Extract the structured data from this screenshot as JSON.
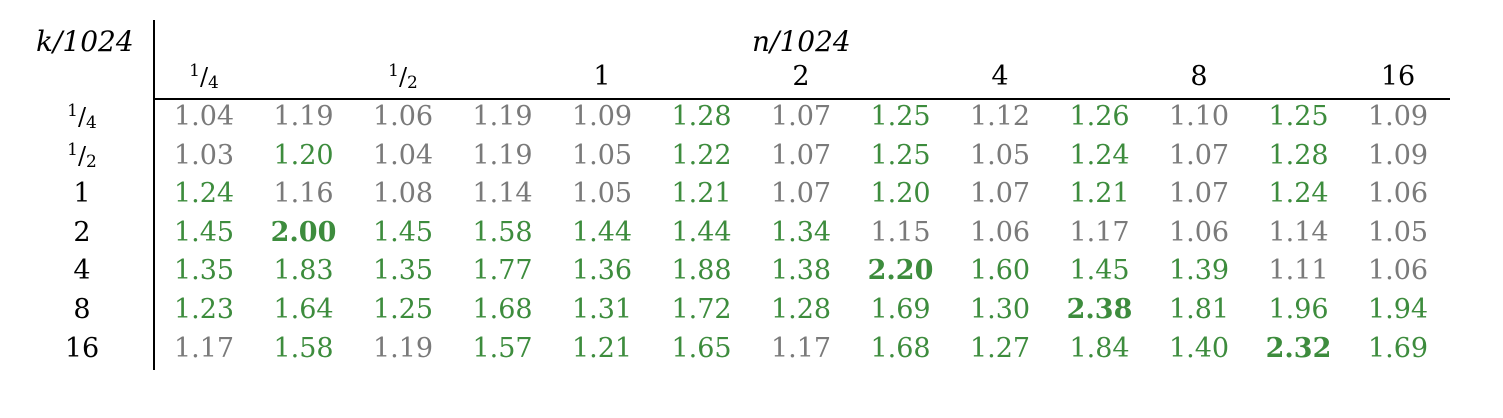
{
  "table": {
    "row_axis_label": "k/1024",
    "col_axis_label": "n/1024",
    "col_headers": [
      {
        "num": "1",
        "den": "4"
      },
      {
        "num": "1",
        "den": "2"
      },
      {
        "text": "1"
      },
      {
        "text": "2"
      },
      {
        "text": "4"
      },
      {
        "text": "8"
      },
      {
        "text": "16"
      }
    ],
    "row_headers": [
      {
        "num": "1",
        "den": "4"
      },
      {
        "num": "1",
        "den": "2"
      },
      {
        "text": "1"
      },
      {
        "text": "2"
      },
      {
        "text": "4"
      },
      {
        "text": "8"
      },
      {
        "text": "16"
      }
    ],
    "rows": [
      [
        [
          "1.04",
          "grey"
        ],
        [
          "1.19",
          "grey"
        ],
        [
          "1.06",
          "grey"
        ],
        [
          "1.19",
          "grey"
        ],
        [
          "1.09",
          "grey"
        ],
        [
          "1.28",
          "green"
        ],
        [
          "1.07",
          "grey"
        ],
        [
          "1.25",
          "green"
        ],
        [
          "1.12",
          "grey"
        ],
        [
          "1.26",
          "green"
        ],
        [
          "1.10",
          "grey"
        ],
        [
          "1.25",
          "green"
        ],
        [
          "1.09",
          "grey"
        ]
      ],
      [
        [
          "1.03",
          "grey"
        ],
        [
          "1.20",
          "green"
        ],
        [
          "1.04",
          "grey"
        ],
        [
          "1.19",
          "grey"
        ],
        [
          "1.05",
          "grey"
        ],
        [
          "1.22",
          "green"
        ],
        [
          "1.07",
          "grey"
        ],
        [
          "1.25",
          "green"
        ],
        [
          "1.05",
          "grey"
        ],
        [
          "1.24",
          "green"
        ],
        [
          "1.07",
          "grey"
        ],
        [
          "1.28",
          "green"
        ],
        [
          "1.09",
          "grey"
        ]
      ],
      [
        [
          "1.24",
          "green"
        ],
        [
          "1.16",
          "grey"
        ],
        [
          "1.08",
          "grey"
        ],
        [
          "1.14",
          "grey"
        ],
        [
          "1.05",
          "grey"
        ],
        [
          "1.21",
          "green"
        ],
        [
          "1.07",
          "grey"
        ],
        [
          "1.20",
          "green"
        ],
        [
          "1.07",
          "grey"
        ],
        [
          "1.21",
          "green"
        ],
        [
          "1.07",
          "grey"
        ],
        [
          "1.24",
          "green"
        ],
        [
          "1.06",
          "grey"
        ]
      ],
      [
        [
          "1.45",
          "green"
        ],
        [
          "2.00",
          "bold"
        ],
        [
          "1.45",
          "green"
        ],
        [
          "1.58",
          "green"
        ],
        [
          "1.44",
          "green"
        ],
        [
          "1.44",
          "green"
        ],
        [
          "1.34",
          "green"
        ],
        [
          "1.15",
          "grey"
        ],
        [
          "1.06",
          "grey"
        ],
        [
          "1.17",
          "grey"
        ],
        [
          "1.06",
          "grey"
        ],
        [
          "1.14",
          "grey"
        ],
        [
          "1.05",
          "grey"
        ]
      ],
      [
        [
          "1.35",
          "green"
        ],
        [
          "1.83",
          "green"
        ],
        [
          "1.35",
          "green"
        ],
        [
          "1.77",
          "green"
        ],
        [
          "1.36",
          "green"
        ],
        [
          "1.88",
          "green"
        ],
        [
          "1.38",
          "green"
        ],
        [
          "2.20",
          "bold"
        ],
        [
          "1.60",
          "green"
        ],
        [
          "1.45",
          "green"
        ],
        [
          "1.39",
          "green"
        ],
        [
          "1.11",
          "grey"
        ],
        [
          "1.06",
          "grey"
        ]
      ],
      [
        [
          "1.23",
          "green"
        ],
        [
          "1.64",
          "green"
        ],
        [
          "1.25",
          "green"
        ],
        [
          "1.68",
          "green"
        ],
        [
          "1.31",
          "green"
        ],
        [
          "1.72",
          "green"
        ],
        [
          "1.28",
          "green"
        ],
        [
          "1.69",
          "green"
        ],
        [
          "1.30",
          "green"
        ],
        [
          "2.38",
          "bold"
        ],
        [
          "1.81",
          "green"
        ],
        [
          "1.96",
          "green"
        ],
        [
          "1.94",
          "green"
        ]
      ],
      [
        [
          "1.17",
          "grey"
        ],
        [
          "1.58",
          "green"
        ],
        [
          "1.19",
          "grey"
        ],
        [
          "1.57",
          "green"
        ],
        [
          "1.21",
          "green"
        ],
        [
          "1.65",
          "green"
        ],
        [
          "1.17",
          "grey"
        ],
        [
          "1.68",
          "green"
        ],
        [
          "1.27",
          "green"
        ],
        [
          "1.84",
          "green"
        ],
        [
          "1.40",
          "green"
        ],
        [
          "2.32",
          "bold"
        ],
        [
          "1.69",
          "green"
        ]
      ]
    ],
    "colors": {
      "grey": "#7a7a7a",
      "green": "#3d8c3d"
    }
  }
}
